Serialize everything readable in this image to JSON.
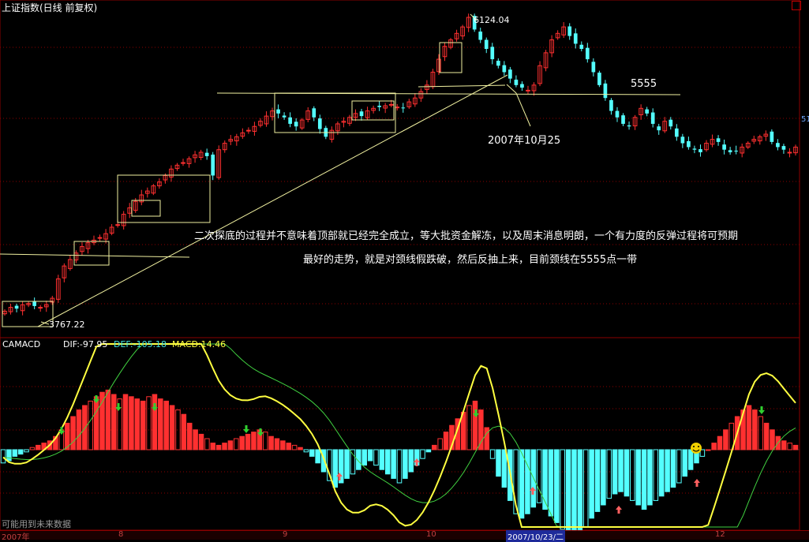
{
  "window": {
    "title": "上证指数(日线 前复权)"
  },
  "main_chart": {
    "high_label": "6124.04",
    "low_label": "3767.22",
    "neckline_label": "5555",
    "date_label": "2007年10月25",
    "commentary_line1": "二次探底的过程并不意味着顶部就已经完全成立，等大批资金解冻，以及周末消息明朗，一个有力度的反弹过程将可预期",
    "commentary_line2": "最好的走势，就是对颈线假跌破，然后反抽上来，目前颈线在5555点一带",
    "right_axis_partial": "51"
  },
  "indicator": {
    "name": "CAMACD",
    "dif_label": "DIF:-97.95",
    "def_label": "DEF:-105.18",
    "macd_label": "MACD:14.46"
  },
  "footer": {
    "note": "可能用到未来数据",
    "x_ticks": [
      "2007年",
      "8",
      "9",
      "10",
      "2007/10/23/二",
      "12"
    ]
  },
  "colors": {
    "up": "#ff3030",
    "down": "#54ffff",
    "dif_line": "#ffff40",
    "def_line": "#40d040",
    "annotation_line": "#f0f0a0",
    "grid": "#8b0000"
  },
  "chart_data": [
    {
      "type": "candlestick",
      "title": "上证指数(日线 前复权)",
      "marked_high": 6124.04,
      "marked_low": 3767.22,
      "neckline": 5555,
      "annotation_date": "2007年10月25",
      "x_ticks": [
        "2007年",
        "8",
        "9",
        "10",
        "2007/10/23/二",
        "12"
      ],
      "close_series_approx": [
        3850,
        3880,
        3870,
        3900,
        3910,
        3890,
        3880,
        3900,
        3950,
        4100,
        4200,
        4250,
        4300,
        4350,
        4380,
        4400,
        4420,
        4450,
        4500,
        4520,
        4600,
        4650,
        4700,
        4750,
        4780,
        4820,
        4850,
        4900,
        4950,
        4980,
        5000,
        5030,
        5060,
        5080,
        5050,
        4900,
        5100,
        5150,
        5180,
        5200,
        5230,
        5250,
        5280,
        5320,
        5360,
        5400,
        5380,
        5350,
        5300,
        5280,
        5330,
        5400,
        5350,
        5260,
        5200,
        5250,
        5300,
        5320,
        5350,
        5380,
        5360,
        5400,
        5420,
        5430,
        5440,
        5450,
        5430,
        5420,
        5470,
        5500,
        5550,
        5600,
        5700,
        5800,
        5900,
        5950,
        6000,
        6050,
        6124,
        6030,
        5950,
        5880,
        5800,
        5750,
        5700,
        5650,
        5600,
        5580,
        5560,
        5600,
        5750,
        5850,
        5950,
        6000,
        6050,
        5980,
        5920,
        5880,
        5800,
        5700,
        5600,
        5500,
        5400,
        5350,
        5300,
        5280,
        5350,
        5420,
        5380,
        5300,
        5250,
        5320,
        5280,
        5200,
        5150,
        5120,
        5100,
        5080,
        5150,
        5180,
        5160,
        5100,
        5080,
        5090,
        5120,
        5150,
        5180,
        5200,
        5220,
        5160,
        5120,
        5100,
        5080,
        5120
      ]
    },
    {
      "type": "bar",
      "title": "CAMACD",
      "series": [
        {
          "name": "DIF",
          "last": -97.95
        },
        {
          "name": "DEF",
          "last": -105.18
        },
        {
          "name": "MACD",
          "last": 14.46
        }
      ],
      "macd_hist_approx": [
        -12,
        -10,
        -6,
        -4,
        -2,
        2,
        4,
        6,
        8,
        12,
        18,
        24,
        30,
        36,
        40,
        44,
        48,
        52,
        54,
        50,
        46,
        50,
        48,
        46,
        44,
        48,
        50,
        46,
        44,
        40,
        36,
        32,
        24,
        18,
        14,
        10,
        6,
        4,
        6,
        8,
        10,
        12,
        14,
        16,
        18,
        16,
        12,
        10,
        8,
        6,
        4,
        2,
        -2,
        -6,
        -12,
        -20,
        -28,
        -34,
        -30,
        -26,
        -22,
        -18,
        -14,
        -10,
        -14,
        -18,
        -22,
        -26,
        -30,
        -26,
        -20,
        -14,
        -8,
        -2,
        4,
        10,
        16,
        22,
        28,
        34,
        40,
        44,
        36,
        20,
        -8,
        -24,
        -34,
        -46,
        -58,
        -62,
        -58,
        -52,
        -48,
        -54,
        -60,
        -66,
        -72,
        -78,
        -84,
        -78,
        -70,
        -62,
        -56,
        -50,
        -44,
        -40,
        -38,
        -42,
        -46,
        -50,
        -54,
        -50,
        -46,
        -42,
        -38,
        -34,
        -30,
        -24,
        -18,
        -12,
        -6,
        0,
        6,
        12,
        18,
        24,
        30,
        36,
        40,
        36,
        30,
        24,
        18,
        12,
        8,
        6,
        4
      ]
    }
  ]
}
